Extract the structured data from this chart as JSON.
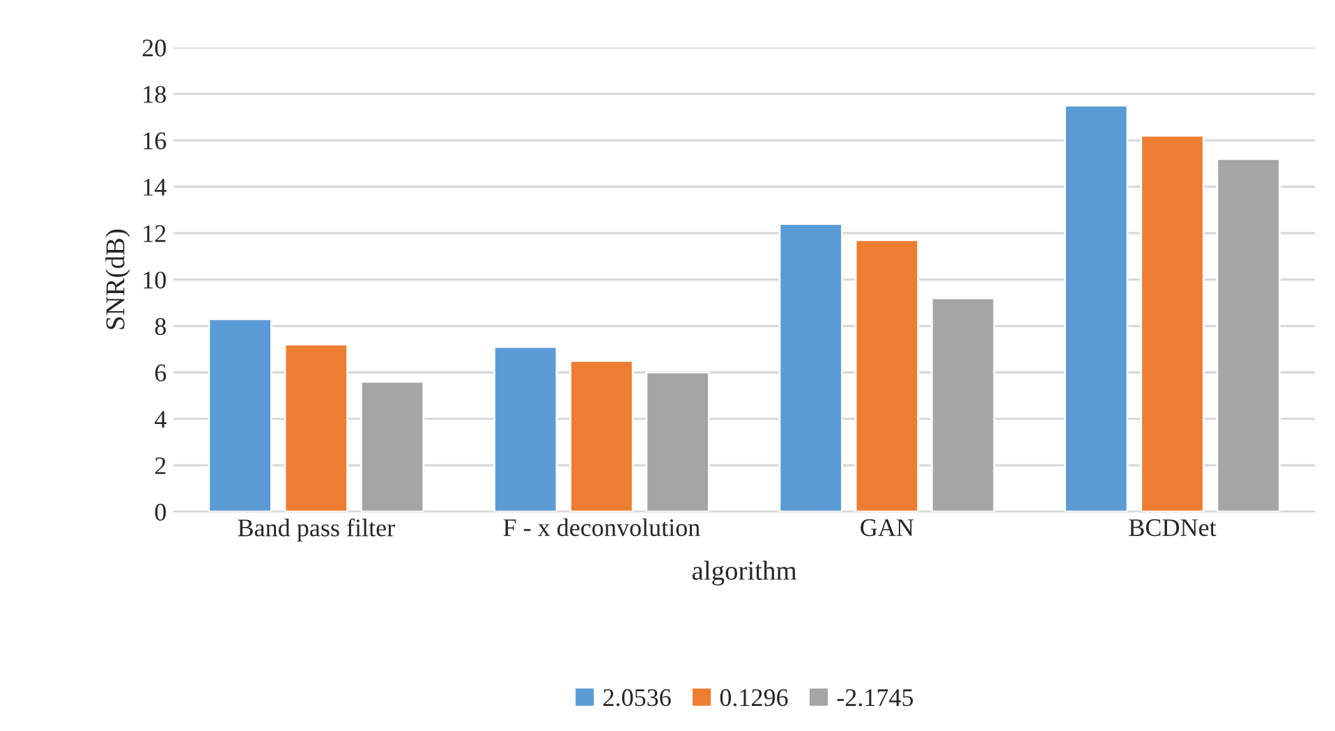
{
  "chart_data": {
    "type": "bar",
    "xlabel": "algorithm",
    "ylabel": "SNR(dB)",
    "categories": [
      "Band pass filter",
      "F - x deconvolution",
      "GAN",
      "BCDNet"
    ],
    "series": [
      {
        "name": "2.0536",
        "color": "#5b9bd5",
        "values": [
          8.3,
          7.1,
          12.4,
          17.5
        ]
      },
      {
        "name": "0.1296",
        "color": "#ed7d31",
        "values": [
          7.2,
          6.5,
          11.7,
          16.2
        ]
      },
      {
        "name": "-2.1745",
        "color": "#a5a5a5",
        "values": [
          5.6,
          6.0,
          9.2,
          15.2
        ]
      }
    ],
    "ylim": [
      0,
      20
    ],
    "yticks": [
      0,
      2,
      4,
      6,
      8,
      10,
      12,
      14,
      16,
      18,
      20
    ],
    "grid": "y",
    "legend": "bottom"
  }
}
